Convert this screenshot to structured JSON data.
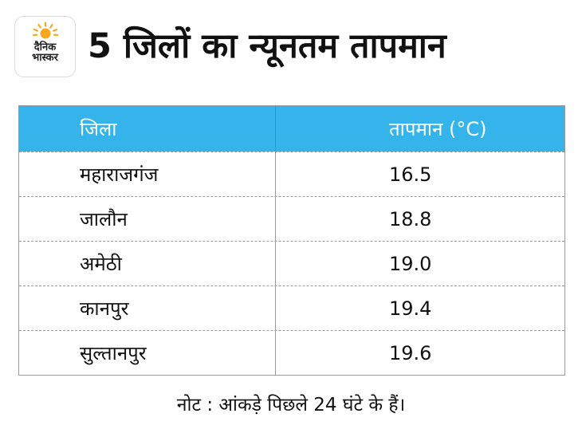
{
  "brand": {
    "name_line1": "दैनिक",
    "name_line2": "भास्कर",
    "sun_color": "#f7a81b"
  },
  "title": "5 जिलों का न्यूनतम तापमान",
  "table": {
    "header_color": "#34b4ea",
    "columns": [
      "जिला",
      "तापमान (°C)"
    ],
    "rows": [
      {
        "district": "महाराजगंज",
        "temp": "16.5"
      },
      {
        "district": "जालौन",
        "temp": "18.8"
      },
      {
        "district": "अमेठी",
        "temp": "19.0"
      },
      {
        "district": "कानपुर",
        "temp": "19.4"
      },
      {
        "district": "सुल्तानपुर",
        "temp": "19.6"
      }
    ]
  },
  "note": "नोट : आंकड़े पिछले 24 घंटे के हैं।"
}
